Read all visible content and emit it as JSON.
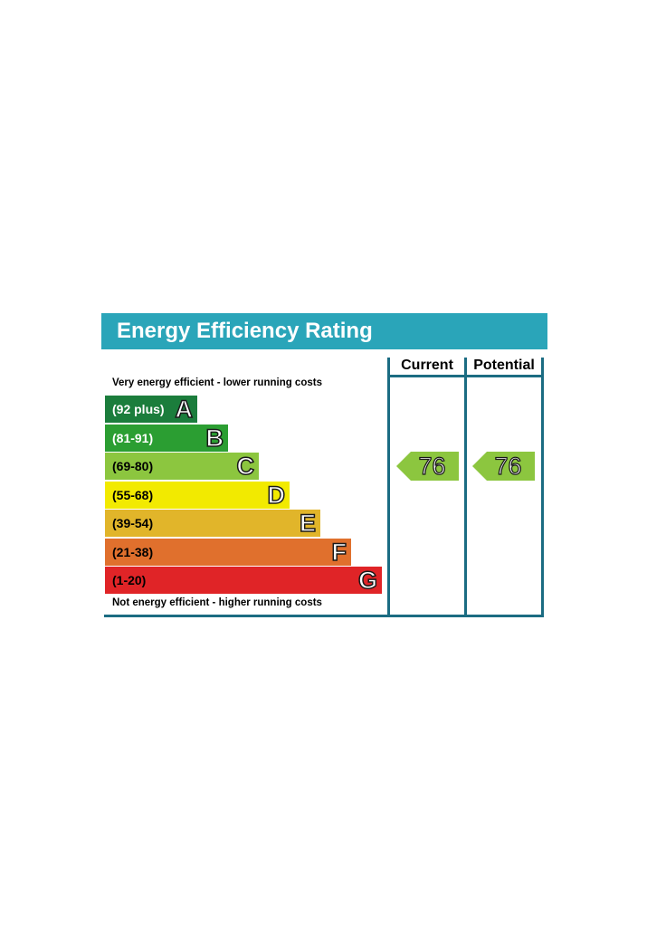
{
  "title": "Energy Efficiency Rating",
  "columns": {
    "current": "Current",
    "potential": "Potential"
  },
  "captions": {
    "top": "Very energy efficient - lower running costs",
    "bottom": "Not energy efficient - higher running costs"
  },
  "chart_data": {
    "type": "bar",
    "title": "Energy Efficiency Rating",
    "bands": [
      {
        "letter": "A",
        "range": "(92 plus)",
        "color": "#1b7d3c",
        "text_color": "#ffffff"
      },
      {
        "letter": "B",
        "range": "(81-91)",
        "color": "#2b9e32",
        "text_color": "#ffffff"
      },
      {
        "letter": "C",
        "range": "(69-80)",
        "color": "#8cc63f",
        "text_color": "#000000"
      },
      {
        "letter": "D",
        "range": "(55-68)",
        "color": "#f2ea00",
        "text_color": "#000000"
      },
      {
        "letter": "E",
        "range": "(39-54)",
        "color": "#e1b52a",
        "text_color": "#000000"
      },
      {
        "letter": "F",
        "range": "(21-38)",
        "color": "#e0702d",
        "text_color": "#000000"
      },
      {
        "letter": "G",
        "range": "(1-20)",
        "color": "#e02427",
        "text_color": "#000000"
      }
    ],
    "series": [
      {
        "name": "Current",
        "value": 76,
        "band": "C"
      },
      {
        "name": "Potential",
        "value": 76,
        "band": "C"
      }
    ],
    "arrow_color": "#8cc63f"
  }
}
